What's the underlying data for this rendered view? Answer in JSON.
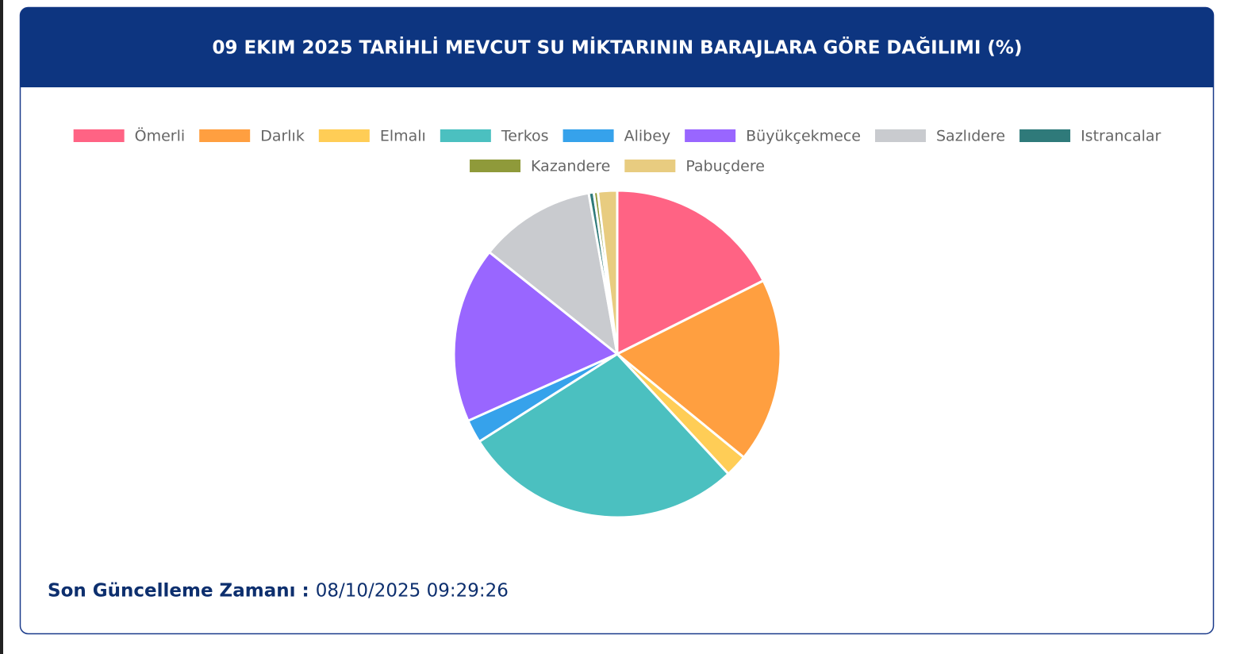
{
  "chart_data": {
    "type": "pie",
    "title": "09 EKIM 2025 TARİHLİ MEVCUT SU MİKTARININ BARAJLARA GÖRE DAĞILIMI (%)",
    "categories": [
      "Ömerli",
      "Darlık",
      "Elmalı",
      "Terkos",
      "Alibey",
      "Büyükçekmece",
      "Sazlıdere",
      "Istrancalar",
      "Kazandere",
      "Pabuçdere"
    ],
    "values": [
      17.6,
      18.3,
      2.2,
      27.9,
      2.3,
      17.4,
      11.5,
      0.5,
      0.4,
      1.9
    ],
    "colors": [
      "#ff6384",
      "#ff9f40",
      "#ffcd56",
      "#4bc0c0",
      "#36a2eb",
      "#9966ff",
      "#c9cbcf",
      "#2f7a7a",
      "#8f9a3a",
      "#e8cc80"
    ]
  },
  "footer": {
    "label": "Son Güncelleme Zamanı :",
    "value": "08/10/2025 09:29:26"
  }
}
